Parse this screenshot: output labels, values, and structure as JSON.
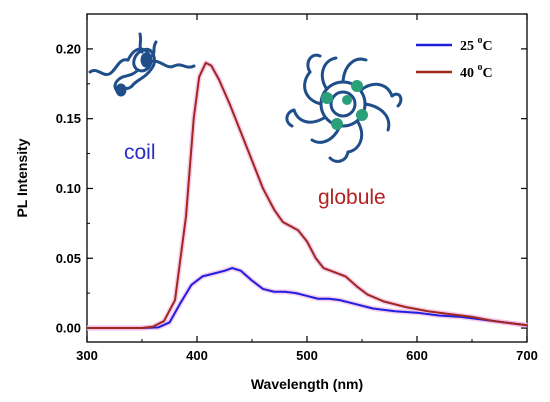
{
  "chart_data": {
    "type": "line",
    "xlabel": "Wavelength (nm)",
    "ylabel": "PL Intensity",
    "xlim": [
      300,
      700
    ],
    "ylim": [
      -0.01,
      0.225
    ],
    "xticks": [
      300,
      400,
      500,
      600,
      700
    ],
    "xtick_labels": [
      "300",
      "400",
      "500",
      "600",
      "700"
    ],
    "yticks": [
      0.0,
      0.05,
      0.1,
      0.15,
      0.2
    ],
    "ytick_labels": [
      "0.00",
      "0.05",
      "0.10",
      "0.15",
      "0.20"
    ],
    "grid": false,
    "legend_position": "top-right",
    "series": [
      {
        "name": "25 °C",
        "name_main": "25 ",
        "name_sup": "o",
        "name_unit": "C",
        "color": "#1f1fe0",
        "points": [
          [
            300,
            0.0
          ],
          [
            350,
            0.0
          ],
          [
            365,
            0.0005
          ],
          [
            375,
            0.004
          ],
          [
            385,
            0.018
          ],
          [
            395,
            0.031
          ],
          [
            405,
            0.037
          ],
          [
            415,
            0.039
          ],
          [
            425,
            0.041
          ],
          [
            432,
            0.043
          ],
          [
            440,
            0.041
          ],
          [
            450,
            0.034
          ],
          [
            460,
            0.028
          ],
          [
            470,
            0.026
          ],
          [
            480,
            0.026
          ],
          [
            490,
            0.025
          ],
          [
            500,
            0.023
          ],
          [
            510,
            0.021
          ],
          [
            520,
            0.021
          ],
          [
            530,
            0.02
          ],
          [
            540,
            0.018
          ],
          [
            560,
            0.014
          ],
          [
            580,
            0.012
          ],
          [
            600,
            0.011
          ],
          [
            620,
            0.009
          ],
          [
            640,
            0.008
          ],
          [
            660,
            0.006
          ],
          [
            680,
            0.004
          ],
          [
            700,
            0.002
          ]
        ]
      },
      {
        "name": "40 °C",
        "name_main": "40 ",
        "name_sup": "o",
        "name_unit": "C",
        "color": "#a0281c",
        "points": [
          [
            300,
            0.0
          ],
          [
            350,
            0.0
          ],
          [
            360,
            0.001
          ],
          [
            370,
            0.005
          ],
          [
            380,
            0.02
          ],
          [
            390,
            0.08
          ],
          [
            397,
            0.15
          ],
          [
            402,
            0.18
          ],
          [
            408,
            0.19
          ],
          [
            413,
            0.188
          ],
          [
            420,
            0.178
          ],
          [
            430,
            0.16
          ],
          [
            440,
            0.14
          ],
          [
            450,
            0.12
          ],
          [
            460,
            0.1
          ],
          [
            470,
            0.085
          ],
          [
            478,
            0.076
          ],
          [
            485,
            0.073
          ],
          [
            492,
            0.07
          ],
          [
            500,
            0.062
          ],
          [
            508,
            0.05
          ],
          [
            515,
            0.043
          ],
          [
            525,
            0.04
          ],
          [
            535,
            0.037
          ],
          [
            545,
            0.03
          ],
          [
            555,
            0.024
          ],
          [
            570,
            0.019
          ],
          [
            590,
            0.015
          ],
          [
            610,
            0.012
          ],
          [
            630,
            0.01
          ],
          [
            650,
            0.008
          ],
          [
            670,
            0.005
          ],
          [
            690,
            0.003
          ],
          [
            700,
            0.002
          ]
        ]
      }
    ],
    "annotations": [
      {
        "text": "coil",
        "color": "#2b2bc8"
      },
      {
        "text": "globule",
        "color": "#b22222"
      }
    ]
  }
}
